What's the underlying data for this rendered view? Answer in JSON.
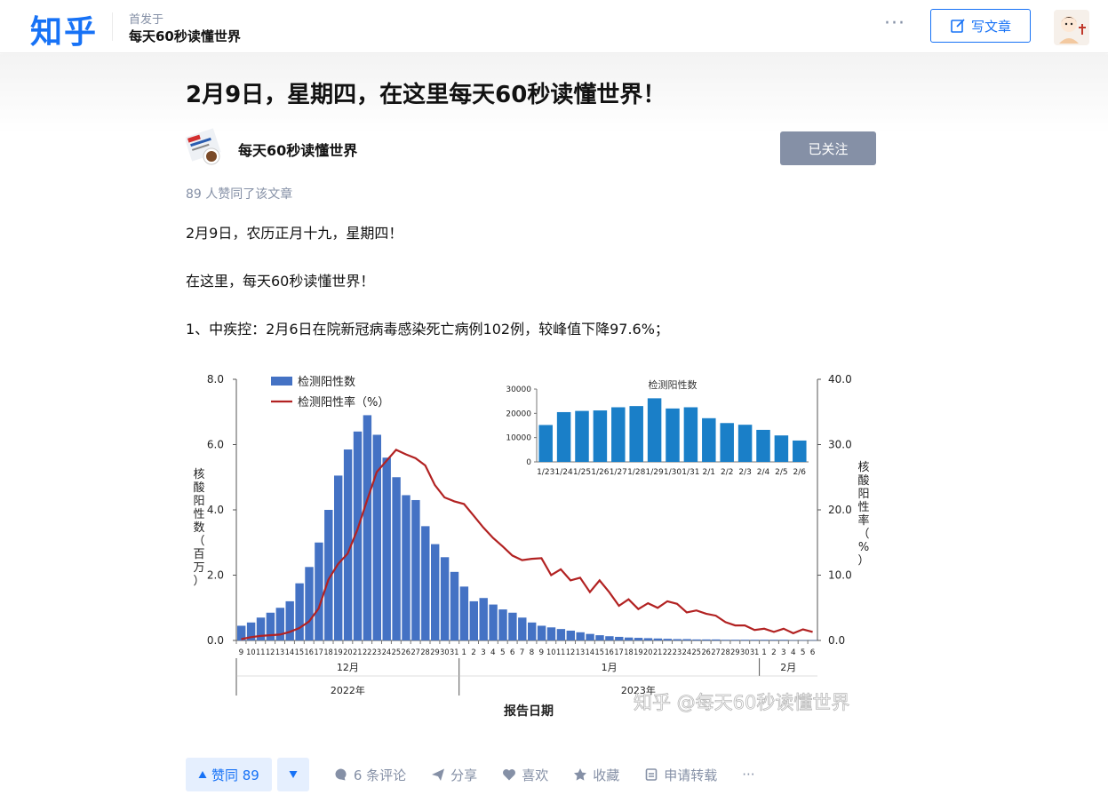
{
  "header": {
    "logo": "知乎",
    "published_label": "首发于",
    "column_name": "每天60秒读懂世界",
    "more": "···",
    "write_label": "写文章"
  },
  "article": {
    "title": "2月9日，星期四，在这里每天60秒读懂世界！",
    "author": "每天60秒读懂世界",
    "follow_label": "已关注",
    "likes_line": "89 人赞同了该文章",
    "p1": "2月9日，农历正月十九，星期四！",
    "p2": "在这里，每天60秒读懂世界！",
    "p3": "1、中疾控：2月6日在院新冠病毒感染死亡病例102例，较峰值下降97.6%；"
  },
  "chart_data": [
    {
      "type": "bar",
      "legend": [
        "检测阳性数",
        "检测阳性率（%）"
      ],
      "ylabel_left": "核酸阳性数（百万）",
      "ylabel_right": "核酸阳性率（%）",
      "xlabel": "报告日期",
      "yticks_left": [
        "0.0",
        "2.0",
        "4.0",
        "6.0",
        "8.0"
      ],
      "yticks_right": [
        "0.0",
        "10.0",
        "20.0",
        "30.0",
        "40.0"
      ],
      "ylim_left": [
        0,
        8
      ],
      "ylim_right": [
        0,
        40
      ],
      "x": [
        "9",
        "10",
        "11",
        "12",
        "13",
        "14",
        "15",
        "16",
        "17",
        "18",
        "19",
        "20",
        "21",
        "22",
        "23",
        "24",
        "25",
        "26",
        "27",
        "28",
        "29",
        "30",
        "31",
        "1",
        "2",
        "3",
        "4",
        "5",
        "6",
        "7",
        "8",
        "9",
        "10",
        "11",
        "12",
        "13",
        "14",
        "15",
        "16",
        "17",
        "18",
        "19",
        "20",
        "21",
        "22",
        "23",
        "24",
        "25",
        "26",
        "27",
        "28",
        "29",
        "30",
        "31",
        "1",
        "2",
        "3",
        "4",
        "5",
        "6"
      ],
      "month_labels": [
        "12月",
        "1月",
        "2月"
      ],
      "year_labels": [
        "2022年",
        "2023年"
      ],
      "series": [
        {
          "name": "检测阳性数",
          "color": "#4472c4",
          "values": [
            0.45,
            0.55,
            0.7,
            0.85,
            1.0,
            1.2,
            1.75,
            2.25,
            3.0,
            4.0,
            5.05,
            5.85,
            6.4,
            6.9,
            6.3,
            5.6,
            5.0,
            4.45,
            4.3,
            3.5,
            2.95,
            2.55,
            2.1,
            1.65,
            1.2,
            1.3,
            1.1,
            0.95,
            0.85,
            0.7,
            0.55,
            0.45,
            0.4,
            0.35,
            0.3,
            0.25,
            0.2,
            0.16,
            0.13,
            0.11,
            0.09,
            0.08,
            0.07,
            0.06,
            0.05,
            0.04,
            0.04,
            0.03,
            0.03,
            0.03,
            0.02,
            0.02,
            0.02,
            0.02,
            0.02,
            0.02,
            0.02,
            0.01,
            0.01,
            0.01
          ]
        },
        {
          "name": "检测阳性率（%）",
          "color": "#b22222",
          "values": [
            0.2,
            0.5,
            0.7,
            0.8,
            0.9,
            1.3,
            1.9,
            2.9,
            4.9,
            9.3,
            11.7,
            13.3,
            17.0,
            21.5,
            25.8,
            27.5,
            29.2,
            28.5,
            27.9,
            26.8,
            23.8,
            21.9,
            21.3,
            20.9,
            19.1,
            17.3,
            15.7,
            14.4,
            13.0,
            12.3,
            12.5,
            12.6,
            10.0,
            10.9,
            9.2,
            9.6,
            7.4,
            9.2,
            7.4,
            5.3,
            6.3,
            4.8,
            5.7,
            5.0,
            6.0,
            5.6,
            4.3,
            4.6,
            4.1,
            3.8,
            2.8,
            2.3,
            2.3,
            1.6,
            1.8,
            1.3,
            1.8,
            1.1,
            1.7,
            1.3
          ]
        }
      ]
    },
    {
      "type": "bar",
      "title": "检测阳性数",
      "categories": [
        "1/23",
        "1/24",
        "1/25",
        "1/26",
        "1/27",
        "1/28",
        "1/29",
        "1/30",
        "1/31",
        "2/1",
        "2/2",
        "2/3",
        "2/4",
        "2/5",
        "2/6"
      ],
      "values": [
        15200,
        20500,
        21000,
        21200,
        22500,
        23000,
        26200,
        22000,
        22500,
        18000,
        16000,
        15300,
        13200,
        10900,
        8800
      ],
      "yticks": [
        "0",
        "10000",
        "20000",
        "30000"
      ],
      "ylim": [
        0,
        30000
      ],
      "color": "#1a7fc8"
    }
  ],
  "watermark": "知乎 @每天60秒读懂世界",
  "actions": {
    "vote_up": "赞同 89",
    "comments": "6 条评论",
    "share": "分享",
    "like": "喜欢",
    "collect": "收藏",
    "repost": "申请转载",
    "more": "···"
  }
}
